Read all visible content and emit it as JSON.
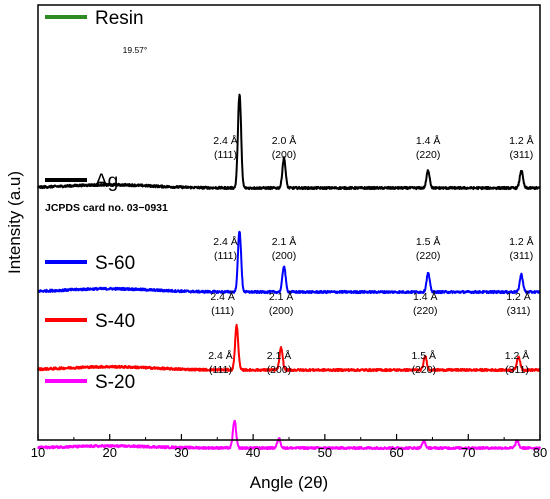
{
  "chart_data": {
    "type": "line",
    "xlabel": "Angle (2θ)",
    "ylabel": "Intensity (a.u)",
    "xlim": [
      10,
      80
    ],
    "xticks": [
      "10",
      "20",
      "30",
      "40",
      "50",
      "60",
      "70",
      "80"
    ],
    "grid": false,
    "jcpds_label": "JCPDS card no. 03−0931",
    "series": [
      {
        "name": "Resin",
        "color": "#2e8b23",
        "offset": 88,
        "peaks": [
          {
            "x": 19.57,
            "label": "19.57°"
          }
        ]
      },
      {
        "name": "Ag",
        "color": "#000000",
        "offset": 16,
        "peaks": [
          {
            "x": 38.1,
            "height": 14.5,
            "d": "2.4 Å",
            "hkl": "(111)"
          },
          {
            "x": 44.3,
            "height": 4.6,
            "d": "2.0 Å",
            "hkl": "(200)"
          },
          {
            "x": 64.4,
            "height": 2.7,
            "d": "1.4 Å",
            "hkl": "(220)"
          },
          {
            "x": 77.4,
            "height": 2.7,
            "d": "1.2 Å",
            "hkl": "(311)"
          }
        ]
      },
      {
        "name": "S-60",
        "color": "#0000ff",
        "offset": 0,
        "peaks": [
          {
            "x": 38.1,
            "height": 9.4,
            "d": "2.4 Å",
            "hkl": "(111)"
          },
          {
            "x": 44.3,
            "height": 4.0,
            "d": "2.1 Å",
            "hkl": "(200)"
          },
          {
            "x": 64.4,
            "height": 2.9,
            "d": "1.5 Å",
            "hkl": "(220)"
          },
          {
            "x": 77.4,
            "height": 2.7,
            "d": "1.2 Å",
            "hkl": "(311)"
          }
        ]
      },
      {
        "name": "S-40",
        "color": "#ff0000",
        "offset": -12,
        "peaks": [
          {
            "x": 37.7,
            "height": 6.8,
            "d": "2.4 Å",
            "hkl": "(111)"
          },
          {
            "x": 43.9,
            "height": 3.4,
            "d": "2.1 Å",
            "hkl": "(200)"
          },
          {
            "x": 64.0,
            "height": 2.1,
            "d": "1.4 Å",
            "hkl": "(220)"
          },
          {
            "x": 77.0,
            "height": 2.1,
            "d": "1.2 Å",
            "hkl": "(311)"
          }
        ]
      },
      {
        "name": "S-20",
        "color": "#ff00ff",
        "offset": -24,
        "peaks": [
          {
            "x": 37.4,
            "height": 4.2,
            "d": "2.4 Å",
            "hkl": "(111)"
          },
          {
            "x": 43.6,
            "height": 1.5,
            "d": "2.1 Å",
            "hkl": "(200)"
          },
          {
            "x": 63.8,
            "height": 1.0,
            "d": "1.5 Å",
            "hkl": "(220)"
          },
          {
            "x": 76.8,
            "height": 1.1,
            "d": "1.2 Å",
            "hkl": "(311)"
          }
        ]
      }
    ]
  }
}
